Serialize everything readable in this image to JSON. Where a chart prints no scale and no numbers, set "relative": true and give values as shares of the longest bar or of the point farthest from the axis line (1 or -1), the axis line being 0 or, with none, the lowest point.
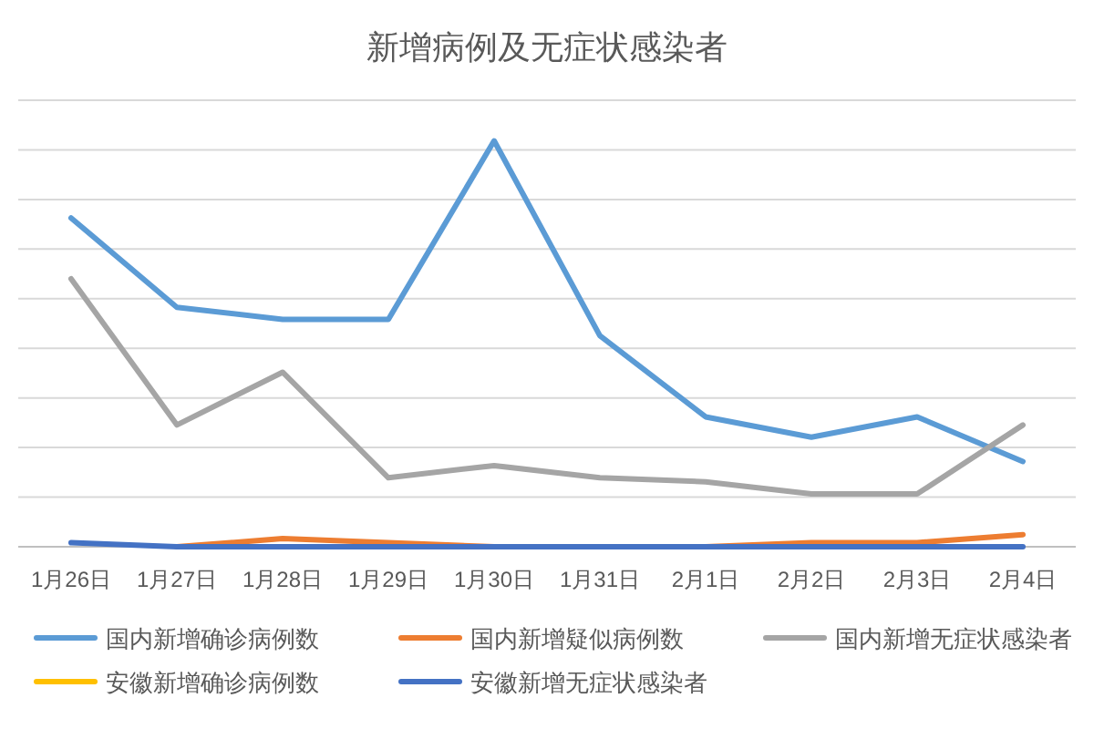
{
  "chart_data": {
    "type": "line",
    "title": "新增病例及无症状感染者",
    "relative": true,
    "grid": "y",
    "tick_labels": "x",
    "legend": "bottom",
    "line_style": "solid",
    "categories": [
      "1月26日",
      "1月27日",
      "1月28日",
      "1月29日",
      "1月30日",
      "1月31日",
      "2月1日",
      "2月2日",
      "2月3日",
      "2月4日"
    ],
    "series": [
      {
        "name": "国内新增确诊病例数",
        "color": "#5b9bd5",
        "values": [
          0.81,
          0.59,
          0.56,
          0.56,
          1,
          0.52,
          0.32,
          0.27,
          0.32,
          0.21
        ]
      },
      {
        "name": "国内新增疑似病例数",
        "color": "#ed7d31",
        "values": [
          null,
          0,
          0.02,
          0.01,
          0,
          0,
          0,
          0.01,
          0.01,
          0.03
        ]
      },
      {
        "name": "国内新增无症状感染者",
        "color": "#a5a5a5",
        "values": [
          0.66,
          0.3,
          0.43,
          0.17,
          0.2,
          0.17,
          0.16,
          0.13,
          0.13,
          0.3
        ]
      },
      {
        "name": "安徽新增确诊病例数",
        "color": "#ffc000",
        "values": [
          null,
          null,
          null,
          null,
          null,
          null,
          null,
          null,
          null,
          null
        ]
      },
      {
        "name": "安徽新增无症状感染者",
        "color": "#4472c4",
        "values": [
          0.01,
          0,
          0,
          0,
          0,
          0,
          0,
          0,
          0,
          0
        ]
      }
    ]
  }
}
